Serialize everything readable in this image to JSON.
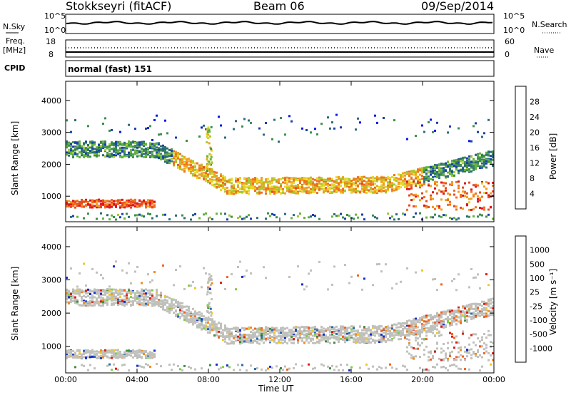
{
  "header": {
    "site": "Stokkseyri (fitACF)",
    "beam": "Beam 06",
    "date": "09/Sep/2014"
  },
  "top_panel": {
    "left_label": "N.Sky",
    "right_label": "N.Search",
    "left_ticks": [
      "10^5",
      "10^0"
    ],
    "right_ticks": [
      "10^5",
      "10^0"
    ]
  },
  "freq_panel": {
    "left_label_1": "Freq.",
    "left_label_2": "[MHz]",
    "left_ticks": [
      "18",
      "8"
    ],
    "right_label": "Nave",
    "right_ticks": [
      "60",
      "0"
    ]
  },
  "cpid": {
    "label": "CPID",
    "value": "normal (fast) 151"
  },
  "chart_data": [
    {
      "type": "heatmap",
      "name": "power",
      "ylabel": "Slant Range [km]",
      "ylim": [
        200,
        4600
      ],
      "yticks": [
        1000,
        2000,
        3000,
        4000
      ],
      "colorbar": {
        "label": "Power [dB]",
        "ticks": [
          "28",
          "24",
          "20",
          "16",
          "12",
          "8",
          "4"
        ],
        "colors": [
          "#0018f0",
          "#1a40b0",
          "#2c6d78",
          "#3d8f4a",
          "#64b43c",
          "#a6c832",
          "#e8d628",
          "#f0a01e",
          "#f0701e",
          "#e84a20",
          "#e0141a"
        ]
      }
    },
    {
      "type": "heatmap",
      "name": "velocity",
      "ylabel": "Slant Range [km]",
      "ylim": [
        200,
        4600
      ],
      "yticks": [
        1000,
        2000,
        3000,
        4000
      ],
      "colorbar": {
        "label": "Velocity [m s⁻¹]",
        "ticks": [
          "1000",
          "500",
          "100",
          "25",
          "-25",
          "-100",
          "-500",
          "-1000"
        ],
        "colors": [
          "#1430c8",
          "#2a6ab4",
          "#3c8f3c",
          "#7fd044",
          "#c0c0bc",
          "#c0c0bc",
          "#f0c828",
          "#f08c1e",
          "#f0641e",
          "#e01e14"
        ]
      }
    }
  ],
  "x_axis": {
    "label": "Time UT",
    "ticks": [
      "00:00",
      "04:00",
      "08:00",
      "12:00",
      "16:00",
      "20:00",
      "00:00"
    ]
  }
}
